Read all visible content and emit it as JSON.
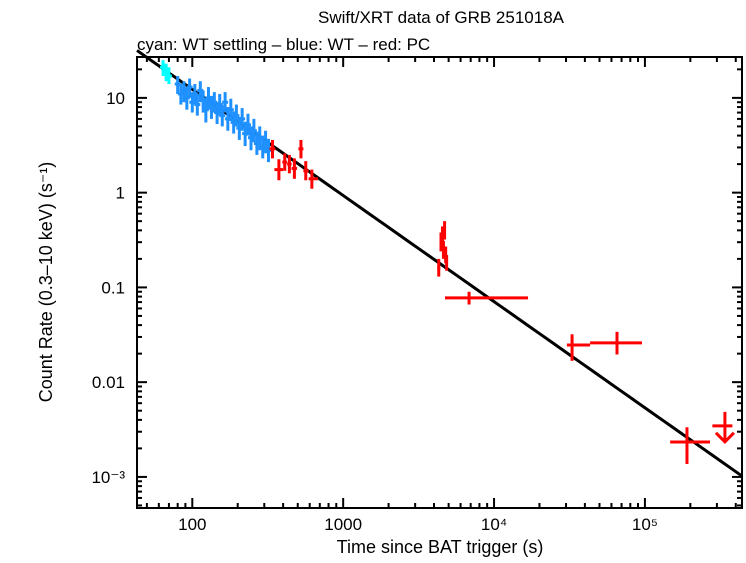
{
  "chart_data": {
    "type": "scatter",
    "title": "Swift/XRT data of GRB 251018A",
    "subtitle": "cyan: WT settling – blue: WT – red: PC",
    "xlabel": "Time since BAT trigger (s)",
    "ylabel": "Count Rate (0.3–10 keV) (s⁻¹)",
    "xscale": "log",
    "yscale": "log",
    "xlim": [
      43,
      440000
    ],
    "ylim": [
      0.00047,
      27
    ],
    "xticks": [
      {
        "v": 100,
        "label": "100"
      },
      {
        "v": 1000,
        "label": "1000"
      },
      {
        "v": 10000,
        "label": "10⁴"
      },
      {
        "v": 100000,
        "label": "10⁵"
      }
    ],
    "yticks": [
      {
        "v": 10,
        "label": "10"
      },
      {
        "v": 1,
        "label": "1"
      },
      {
        "v": 0.1,
        "label": "0.1"
      },
      {
        "v": 0.01,
        "label": "0.01"
      },
      {
        "v": 0.001,
        "label": "10⁻³"
      }
    ],
    "colors": {
      "wt_settling": "#00ffff",
      "wt": "#1e90ff",
      "pc": "#ff0000",
      "model": "#000000"
    },
    "model": {
      "type": "power-law",
      "norm_at_100s": 12.3,
      "index": 1.12
    },
    "series": [
      {
        "key": "wt_settling",
        "points": [
          [
            64,
            21,
            17,
            25
          ],
          [
            67,
            19,
            15,
            23
          ],
          [
            70,
            17,
            14,
            21
          ]
        ]
      },
      {
        "key": "wt",
        "points": [
          [
            80,
            14,
            11,
            17
          ],
          [
            84,
            11,
            8.5,
            14
          ],
          [
            88,
            12,
            9,
            15
          ],
          [
            92,
            10,
            7.5,
            13
          ],
          [
            96,
            13,
            10,
            16
          ],
          [
            100,
            9,
            7,
            11.5
          ],
          [
            104,
            11,
            8.5,
            14
          ],
          [
            108,
            8.5,
            6.5,
            11
          ],
          [
            113,
            12,
            9,
            15
          ],
          [
            118,
            9.5,
            7,
            12
          ],
          [
            123,
            7.5,
            5.5,
            10
          ],
          [
            128,
            10,
            7.5,
            13
          ],
          [
            134,
            8,
            6,
            10.5
          ],
          [
            140,
            9,
            7,
            11.5
          ],
          [
            146,
            7,
            5.3,
            9
          ],
          [
            152,
            8.5,
            6.5,
            11
          ],
          [
            158,
            6.5,
            5,
            8.5
          ],
          [
            165,
            9,
            7,
            11.5
          ],
          [
            172,
            6,
            4.5,
            8
          ],
          [
            180,
            7.5,
            5.7,
            9.8
          ],
          [
            188,
            5.5,
            4.2,
            7.2
          ],
          [
            196,
            6.5,
            5,
            8.5
          ],
          [
            205,
            4.8,
            3.6,
            6.3
          ],
          [
            214,
            6,
            4.5,
            7.8
          ],
          [
            224,
            4.2,
            3.1,
            5.6
          ],
          [
            234,
            5.2,
            4,
            6.8
          ],
          [
            245,
            3.8,
            2.8,
            5
          ],
          [
            256,
            4.5,
            3.4,
            6
          ],
          [
            268,
            3.3,
            2.5,
            4.4
          ],
          [
            280,
            3.8,
            2.8,
            5
          ],
          [
            293,
            3,
            2.3,
            4
          ],
          [
            306,
            3.4,
            2.6,
            4.5
          ],
          [
            320,
            2.8,
            2.1,
            3.7
          ]
        ]
      },
      {
        "key": "pc",
        "points": [
          [
            340,
            2.9,
            2.3,
            3.6,
            325,
            355
          ],
          [
            375,
            1.75,
            1.35,
            2.25,
            350,
            400
          ],
          [
            410,
            2.1,
            1.7,
            2.6,
            395,
            425
          ],
          [
            440,
            2.0,
            1.6,
            2.5,
            425,
            455
          ],
          [
            475,
            1.8,
            1.4,
            2.3,
            455,
            495
          ],
          [
            525,
            2.9,
            2.3,
            3.6,
            505,
            545
          ],
          [
            565,
            1.7,
            1.35,
            2.15,
            545,
            590
          ],
          [
            620,
            1.4,
            1.1,
            1.75,
            590,
            680
          ],
          [
            4300,
            0.16,
            0.13,
            0.2,
            4200,
            4400
          ],
          [
            4450,
            0.3,
            0.24,
            0.38,
            4400,
            4500
          ],
          [
            4550,
            0.35,
            0.28,
            0.44,
            4500,
            4600
          ],
          [
            4620,
            0.25,
            0.2,
            0.31,
            4600,
            4650
          ],
          [
            4700,
            0.4,
            0.32,
            0.5,
            4650,
            4750
          ],
          [
            4780,
            0.22,
            0.18,
            0.27,
            4750,
            4820
          ],
          [
            4850,
            0.18,
            0.15,
            0.22,
            4820,
            4900
          ],
          [
            6830,
            0.0775,
            0.066,
            0.09,
            4730,
            16800
          ],
          [
            32900,
            0.0247,
            0.0168,
            0.032,
            30400,
            43300
          ],
          [
            65300,
            0.026,
            0.0196,
            0.034,
            43300,
            95600
          ],
          [
            190000,
            0.00234,
            0.00137,
            0.00334,
            147000,
            270000
          ]
        ]
      },
      {
        "key": "pc_upper_limit",
        "points": [
          [
            339000,
            0.00346,
            280000,
            380000
          ]
        ]
      }
    ]
  }
}
